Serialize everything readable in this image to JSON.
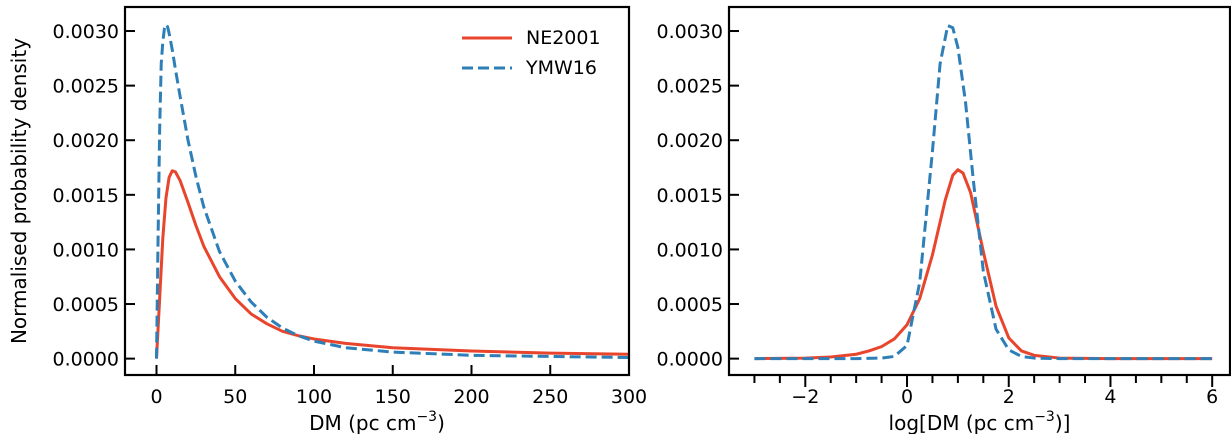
{
  "colors": {
    "ne2001": "#e8452c",
    "ymw16": "#2e7fb8",
    "axis": "#000000"
  },
  "chart_data": [
    {
      "type": "line",
      "xlabel": "DM (pc cm",
      "xlabel_sup": "−3",
      "xlabel_end": ")",
      "ylabel": "Normalised probability density",
      "xlim": [
        -20,
        300
      ],
      "ylim": [
        -0.00015,
        0.00322
      ],
      "xticks": [
        0,
        50,
        100,
        150,
        200,
        250,
        300
      ],
      "xtick_labels": [
        "0",
        "50",
        "100",
        "150",
        "200",
        "250",
        "300"
      ],
      "yticks": [
        0,
        0.0005,
        0.001,
        0.0015,
        0.002,
        0.0025,
        0.003
      ],
      "ytick_labels": [
        "0.0000",
        "0.0005",
        "0.0010",
        "0.0015",
        "0.0020",
        "0.0025",
        "0.0030"
      ],
      "legend": {
        "placement": "top-right",
        "entries": [
          "NE2001",
          "YMW16"
        ]
      },
      "grid": false,
      "series": [
        {
          "name": "NE2001",
          "style": "solid",
          "x": [
            0,
            2,
            4,
            6,
            8,
            10,
            12,
            15,
            20,
            25,
            30,
            40,
            50,
            60,
            70,
            80,
            90,
            100,
            120,
            150,
            200,
            250,
            300
          ],
          "y": [
            0,
            0.00055,
            0.0011,
            0.00147,
            0.00166,
            0.00172,
            0.00171,
            0.00163,
            0.00143,
            0.00122,
            0.00103,
            0.00075,
            0.00055,
            0.00041,
            0.00032,
            0.00025,
            0.00021,
            0.00018,
            0.00014,
            0.0001,
            7e-05,
            5e-05,
            4e-05
          ]
        },
        {
          "name": "YMW16",
          "style": "dashed",
          "x": [
            0,
            1,
            2,
            3,
            4,
            5,
            6,
            7,
            8,
            10,
            12,
            15,
            20,
            25,
            30,
            40,
            50,
            60,
            70,
            80,
            90,
            100,
            120,
            150,
            200,
            250,
            300
          ],
          "y": [
            0,
            0.0011,
            0.0021,
            0.0027,
            0.0029,
            0.00302,
            0.00306,
            0.00304,
            0.00298,
            0.00283,
            0.00265,
            0.0024,
            0.002,
            0.00167,
            0.00139,
            0.00098,
            0.00071,
            0.00052,
            0.00038,
            0.00028,
            0.00021,
            0.00016,
            0.0001,
            6e-05,
            3e-05,
            2e-05,
            1e-05
          ]
        }
      ]
    },
    {
      "type": "line",
      "xlabel": "log[DM (pc cm",
      "xlabel_sup": "−3",
      "xlabel_end": ")]",
      "xlim": [
        -3.5,
        6.35
      ],
      "ylim": [
        -0.00015,
        0.00322
      ],
      "xticks": [
        -2,
        0,
        2,
        4,
        6
      ],
      "xtick_labels": [
        "−2",
        "0",
        "2",
        "4",
        "6"
      ],
      "minor_xticks": [
        -3,
        -2.5,
        -1.5,
        -1,
        -0.5,
        0.5,
        1,
        1.5,
        2.5,
        3,
        3.5,
        4.5,
        5,
        5.5
      ],
      "yticks": [
        0,
        0.0005,
        0.001,
        0.0015,
        0.002,
        0.0025,
        0.003
      ],
      "ytick_labels": [
        "0.0000",
        "0.0005",
        "0.0010",
        "0.0015",
        "0.0020",
        "0.0025",
        "0.0030"
      ],
      "grid": false,
      "series": [
        {
          "name": "NE2001",
          "style": "solid",
          "x": [
            -3,
            -2,
            -1.5,
            -1,
            -0.75,
            -0.5,
            -0.25,
            0,
            0.25,
            0.5,
            0.75,
            0.9,
            1.0,
            1.1,
            1.25,
            1.5,
            1.75,
            2,
            2.25,
            2.5,
            3,
            4,
            5,
            6
          ],
          "y": [
            0,
            5e-06,
            1.5e-05,
            4e-05,
            7e-05,
            0.00011,
            0.00018,
            0.00031,
            0.00055,
            0.00095,
            0.00145,
            0.00168,
            0.00173,
            0.0017,
            0.00152,
            0.00098,
            0.00048,
            0.00019,
            7e-05,
            3e-05,
            5e-06,
            0,
            0,
            0
          ]
        },
        {
          "name": "YMW16",
          "style": "dashed",
          "x": [
            -3,
            -1,
            -0.5,
            -0.25,
            0,
            0.25,
            0.5,
            0.65,
            0.8,
            0.9,
            1.0,
            1.15,
            1.3,
            1.5,
            1.75,
            2,
            2.25,
            2.5,
            3,
            4,
            5,
            6
          ],
          "y": [
            0,
            0,
            5e-06,
            2e-05,
            0.00012,
            0.0007,
            0.0019,
            0.0027,
            0.00305,
            0.00303,
            0.00285,
            0.00235,
            0.00165,
            0.0008,
            0.00027,
            8e-05,
            2e-05,
            5e-06,
            0,
            0,
            0,
            0
          ]
        }
      ]
    }
  ]
}
